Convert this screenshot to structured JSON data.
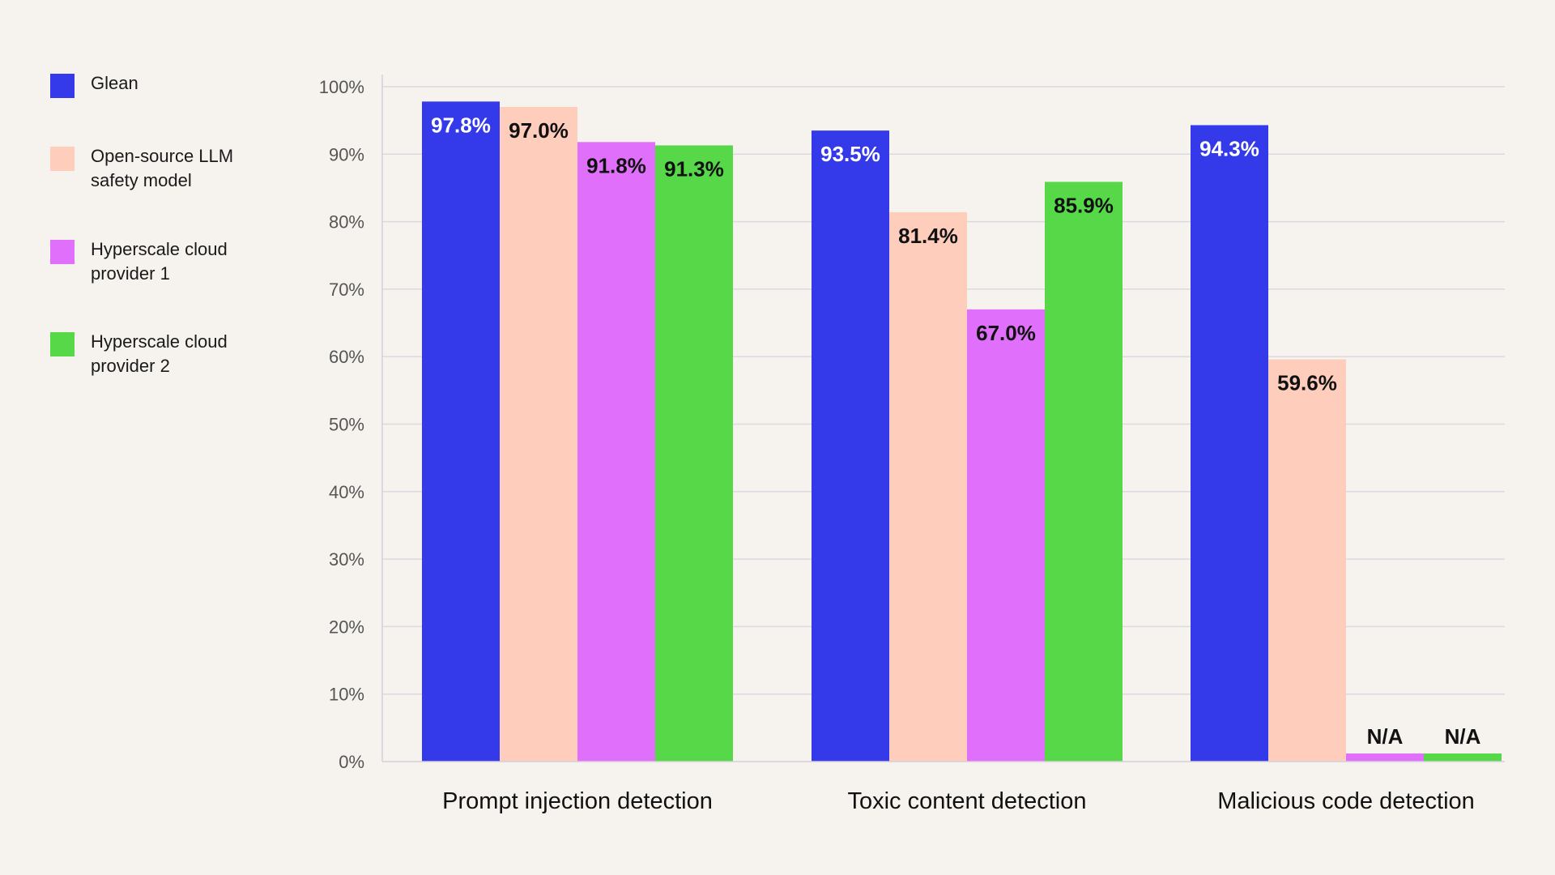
{
  "chart_data": {
    "type": "bar",
    "categories": [
      "Prompt injection detection",
      "Toxic content detection",
      "Malicious code detection"
    ],
    "series": [
      {
        "name": "Glean",
        "color": "#3439ea",
        "label_color": "#ffffff",
        "values": [
          97.8,
          93.5,
          94.3
        ],
        "labels": [
          "97.8%",
          "93.5%",
          "94.3%"
        ]
      },
      {
        "name": "Open-source LLM safety model",
        "color": "#fecdbb",
        "label_color": "#111111",
        "values": [
          97.0,
          81.4,
          59.6
        ],
        "labels": [
          "97.0%",
          "81.4%",
          "59.6%"
        ]
      },
      {
        "name": "Hyperscale cloud provider 1",
        "color": "#e070fb",
        "label_color": "#111111",
        "values": [
          91.8,
          67.0,
          null
        ],
        "labels": [
          "91.8%",
          "67.0%",
          "N/A"
        ]
      },
      {
        "name": "Hyperscale cloud provider 2",
        "color": "#56d849",
        "label_color": "#111111",
        "values": [
          91.3,
          85.9,
          null
        ],
        "labels": [
          "91.3%",
          "85.9%",
          "N/A"
        ]
      }
    ],
    "ylim": [
      0,
      100
    ],
    "yticks": [
      0,
      10,
      20,
      30,
      40,
      50,
      60,
      70,
      80,
      90,
      100
    ],
    "ytick_labels": [
      "0%",
      "10%",
      "20%",
      "30%",
      "40%",
      "50%",
      "60%",
      "70%",
      "80%",
      "90%",
      "100%"
    ],
    "grid": true,
    "legend_position": "left",
    "title": "",
    "xlabel": "",
    "ylabel": ""
  }
}
